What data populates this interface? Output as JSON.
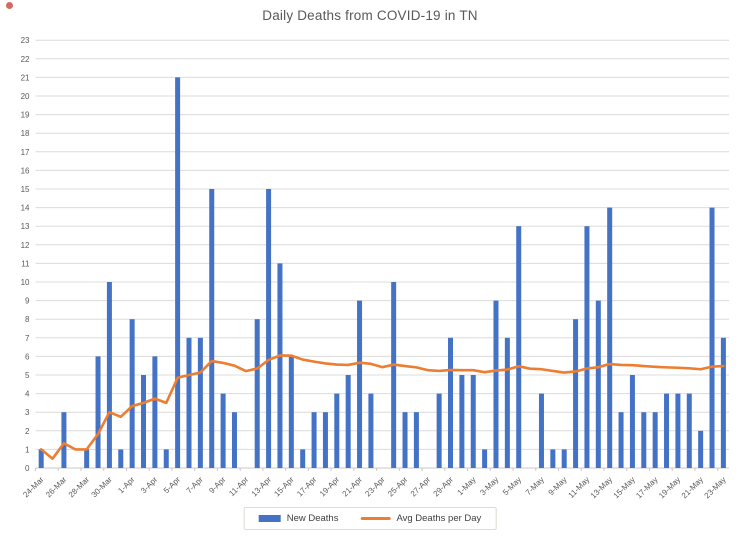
{
  "artifact": {
    "red_dot_color": "#c6453a"
  },
  "chart_data": {
    "type": "bar",
    "title": "Daily Deaths from COVID-19 in TN",
    "title_color": "#595959",
    "axis_text_color": "#595959",
    "grid_color": "#dcdcdc",
    "axis_line_color": "#c9c9c9",
    "grid": true,
    "legend_position": "bottom",
    "ylim": [
      0,
      23
    ],
    "ytick_step": 1,
    "xlabel_every": 2,
    "categories": [
      "24-Mar",
      "25-Mar",
      "26-Mar",
      "27-Mar",
      "28-Mar",
      "29-Mar",
      "30-Mar",
      "31-Mar",
      "1-Apr",
      "2-Apr",
      "3-Apr",
      "4-Apr",
      "5-Apr",
      "6-Apr",
      "7-Apr",
      "8-Apr",
      "9-Apr",
      "10-Apr",
      "11-Apr",
      "12-Apr",
      "13-Apr",
      "14-Apr",
      "15-Apr",
      "16-Apr",
      "17-Apr",
      "18-Apr",
      "19-Apr",
      "20-Apr",
      "21-Apr",
      "22-Apr",
      "23-Apr",
      "24-Apr",
      "25-Apr",
      "26-Apr",
      "27-Apr",
      "28-Apr",
      "29-Apr",
      "30-Apr",
      "1-May",
      "2-May",
      "3-May",
      "4-May",
      "5-May",
      "6-May",
      "7-May",
      "8-May",
      "9-May",
      "10-May",
      "11-May",
      "12-May",
      "13-May",
      "14-May",
      "15-May",
      "16-May",
      "17-May",
      "18-May",
      "19-May",
      "20-May",
      "21-May",
      "22-May",
      "23-May"
    ],
    "series": [
      {
        "name": "New Deaths",
        "type": "bar",
        "color": "#4472C4",
        "values": [
          1,
          0,
          3,
          0,
          1,
          6,
          10,
          1,
          8,
          5,
          6,
          1,
          21,
          7,
          7,
          15,
          4,
          3,
          0,
          8,
          15,
          11,
          6,
          1,
          3,
          3,
          4,
          5,
          9,
          4,
          0,
          10,
          3,
          3,
          0,
          4,
          7,
          5,
          5,
          1,
          9,
          7,
          13,
          0,
          4,
          1,
          1,
          8,
          13,
          9,
          14,
          3,
          5,
          3,
          3,
          4,
          4,
          4,
          2,
          14,
          7
        ]
      },
      {
        "name": "Avg Deaths per Day",
        "type": "line",
        "color": "#ED7D31",
        "values": [
          1.0,
          0.5,
          1.33,
          1.0,
          1.0,
          1.83,
          3.0,
          2.75,
          3.33,
          3.5,
          3.73,
          3.5,
          4.85,
          5.0,
          5.13,
          5.75,
          5.65,
          5.5,
          5.21,
          5.35,
          5.81,
          6.05,
          6.04,
          5.83,
          5.72,
          5.62,
          5.56,
          5.54,
          5.66,
          5.6,
          5.42,
          5.56,
          5.48,
          5.41,
          5.26,
          5.22,
          5.27,
          5.26,
          5.26,
          5.15,
          5.24,
          5.29,
          5.47,
          5.34,
          5.31,
          5.22,
          5.13,
          5.19,
          5.35,
          5.42,
          5.59,
          5.54,
          5.53,
          5.48,
          5.44,
          5.41,
          5.39,
          5.36,
          5.31,
          5.45,
          5.48
        ]
      }
    ]
  }
}
